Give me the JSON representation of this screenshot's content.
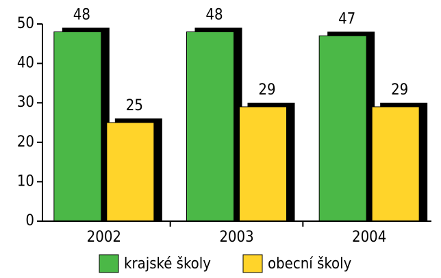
{
  "chart_data": {
    "type": "bar",
    "categories": [
      "2002",
      "2003",
      "2004"
    ],
    "series": [
      {
        "name": "krajské školy",
        "color": "#4bb847",
        "values": [
          48,
          48,
          47
        ]
      },
      {
        "name": "obecní školy",
        "color": "#ffd42a",
        "values": [
          25,
          29,
          29
        ]
      }
    ],
    "ylim": [
      0,
      50
    ],
    "yticks": [
      0,
      10,
      20,
      30,
      40,
      50
    ],
    "shadow": "#000000",
    "legend": "bottom"
  }
}
